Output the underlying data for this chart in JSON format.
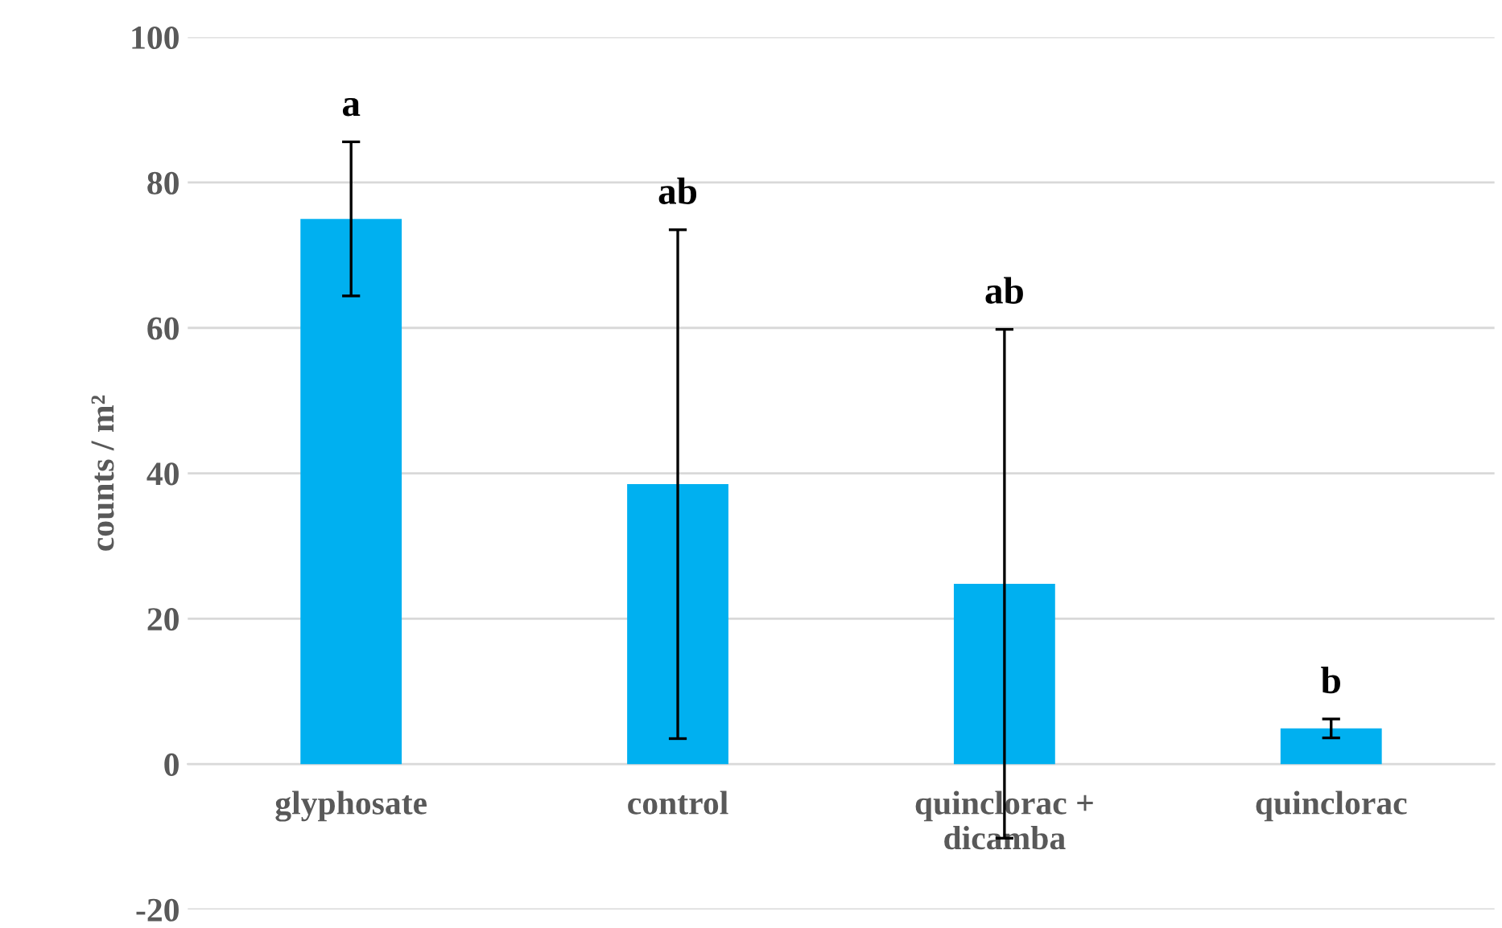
{
  "chart_data": {
    "type": "bar",
    "ylabel": "counts / m²",
    "categories": [
      "glyphosate",
      "control",
      "quinclorac +\ndicamba",
      "quinclorac"
    ],
    "values": [
      75,
      38.5,
      24.8,
      4.9
    ],
    "errors": [
      10.6,
      35,
      35,
      1.3
    ],
    "color": "#00b0f0",
    "ylim": [
      -20,
      100
    ],
    "yticks": [
      -20,
      0,
      20,
      40,
      60,
      80,
      100
    ],
    "grid": "y",
    "annotations": [
      "a",
      "ab",
      "ab",
      "b"
    ]
  }
}
